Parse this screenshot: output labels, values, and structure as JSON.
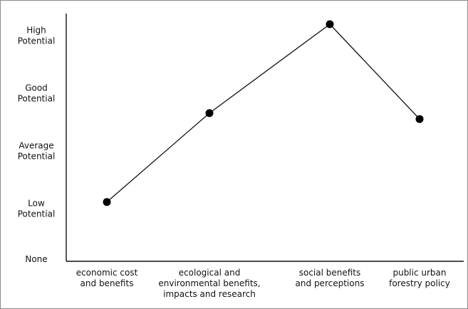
{
  "chart_data": {
    "type": "line",
    "categories": [
      [
        "economic cost",
        "and benefits"
      ],
      [
        "ecological and",
        "environmental benefits,",
        "impacts and research"
      ],
      [
        "social benefits",
        "and perceptions"
      ],
      [
        "public urban",
        "forestry policy"
      ]
    ],
    "y_levels": [
      [
        "None"
      ],
      [
        "Low",
        "Potential"
      ],
      [
        "Average",
        "Potential"
      ],
      [
        "Good",
        "Potential"
      ],
      [
        "High",
        "Potential"
      ]
    ],
    "values": [
      1.0,
      2.5,
      4.0,
      2.4
    ],
    "ylim": [
      0,
      4
    ],
    "grid": false,
    "legend": "none",
    "colors": {
      "line": "#111111",
      "marker": "#000000",
      "axis": "#111111",
      "text": "#111111"
    }
  }
}
